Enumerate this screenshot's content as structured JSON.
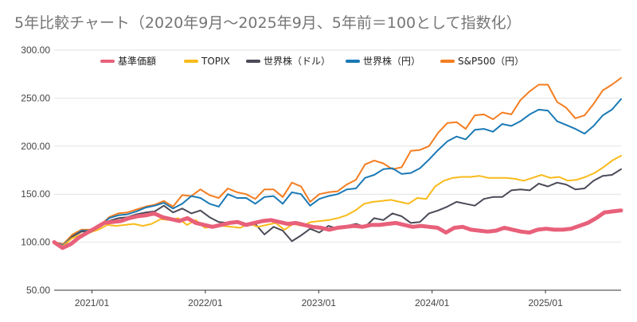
{
  "chart_data": {
    "type": "line",
    "title": "5年比較チャート（2020年9月〜2025年9月、5年前＝100として指数化）",
    "xlabel": "",
    "ylabel": "",
    "ylim": [
      50,
      300
    ],
    "yticks": [
      50,
      100,
      150,
      200,
      250,
      300
    ],
    "ytick_labels": [
      "50.00",
      "100.00",
      "150.00",
      "200.00",
      "250.00",
      "300.00"
    ],
    "xticks": [
      "2021-01",
      "2022-01",
      "2023-01",
      "2024-01",
      "2025-01"
    ],
    "xtick_labels": [
      "2021/01",
      "2022/01",
      "2023/01",
      "2024/01",
      "2025/01"
    ],
    "x_start": "2020-09",
    "grid": "horizontal",
    "legend_position": "top",
    "series": [
      {
        "name": "基準価額",
        "color": "#e8607a",
        "width": 5,
        "values": [
          100,
          94,
          98,
          105,
          110,
          115,
          120,
          121,
          122,
          125,
          127,
          128,
          130,
          126,
          124,
          122,
          125,
          120,
          118,
          116,
          118,
          120,
          121,
          118,
          120,
          122,
          123,
          121,
          119,
          120,
          118,
          116,
          115,
          113,
          115,
          116,
          117,
          116,
          118,
          118,
          119,
          120,
          118,
          116,
          117,
          116,
          115,
          110,
          115,
          116,
          113,
          112,
          111,
          112,
          115,
          113,
          111,
          110,
          113,
          114,
          113,
          113,
          114,
          117,
          120,
          125,
          131,
          132,
          133
        ]
      },
      {
        "name": "TOPIX",
        "color": "#f9bb1b",
        "width": 2,
        "values": [
          100,
          96,
          104,
          108,
          110,
          113,
          118,
          117,
          118,
          119,
          117,
          119,
          124,
          123,
          125,
          118,
          123,
          115,
          116,
          117,
          116,
          115,
          119,
          116,
          118,
          120,
          113,
          119,
          117,
          121,
          122,
          123,
          125,
          128,
          133,
          140,
          142,
          143,
          144,
          142,
          140,
          146,
          145,
          158,
          164,
          167,
          168,
          168,
          169,
          167,
          167,
          167,
          166,
          164,
          167,
          170,
          167,
          168,
          164,
          165,
          168,
          172,
          178,
          185,
          190
        ]
      },
      {
        "name": "世界株（ドル）",
        "color": "#4b4a57",
        "width": 2,
        "values": [
          100,
          95,
          106,
          111,
          111,
          116,
          122,
          125,
          126,
          129,
          131,
          132,
          138,
          131,
          135,
          130,
          133,
          126,
          121,
          120,
          121,
          117,
          119,
          108,
          116,
          112,
          101,
          107,
          114,
          110,
          117,
          114,
          117,
          119,
          116,
          125,
          123,
          130,
          127,
          120,
          121,
          130,
          133,
          137,
          142,
          140,
          138,
          145,
          147,
          147,
          154,
          155,
          154,
          161,
          158,
          162,
          160,
          155,
          156,
          164,
          169,
          170,
          176
        ]
      },
      {
        "name": "世界株（円）",
        "color": "#1a79b5",
        "width": 2,
        "values": [
          100,
          97,
          106,
          112,
          112,
          116,
          125,
          128,
          129,
          132,
          136,
          138,
          141,
          135,
          140,
          148,
          146,
          140,
          137,
          150,
          146,
          146,
          140,
          147,
          148,
          140,
          152,
          150,
          138,
          145,
          148,
          150,
          155,
          156,
          167,
          170,
          176,
          177,
          171,
          172,
          177,
          186,
          196,
          205,
          210,
          207,
          217,
          218,
          215,
          223,
          221,
          226,
          233,
          238,
          237,
          226,
          222,
          218,
          213,
          221,
          232,
          238,
          249
        ]
      },
      {
        "name": "S&P500（円）",
        "color": "#f47d20",
        "width": 2,
        "values": [
          100,
          98,
          108,
          113,
          113,
          117,
          126,
          130,
          131,
          134,
          137,
          139,
          143,
          137,
          149,
          148,
          155,
          149,
          146,
          156,
          152,
          150,
          145,
          155,
          155,
          147,
          162,
          158,
          142,
          150,
          152,
          153,
          160,
          165,
          181,
          185,
          182,
          176,
          178,
          195,
          196,
          200,
          214,
          224,
          225,
          218,
          232,
          233,
          228,
          235,
          233,
          248,
          257,
          264,
          264,
          246,
          240,
          229,
          232,
          244,
          258,
          264,
          271
        ]
      }
    ]
  }
}
